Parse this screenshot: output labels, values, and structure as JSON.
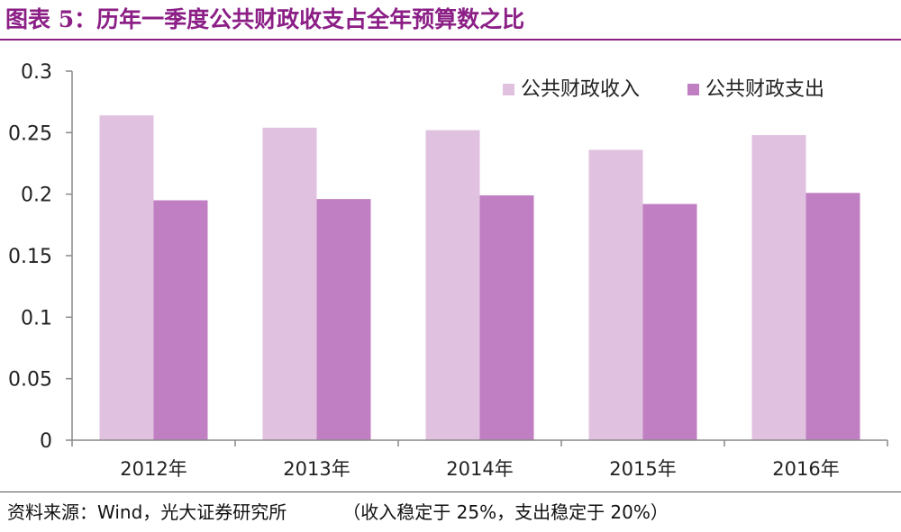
{
  "figure": {
    "label": "图表 5：",
    "title": "历年一季度公共财政收支占全年预算数之比"
  },
  "source": {
    "text": "资料来源：Wind，光大证券研究所",
    "note": "（收入稳定于 25%，支出稳定于 20%）"
  },
  "colors": {
    "accent": "#8b1f86",
    "income": "#e0c1e0",
    "expense": "#c07fc2"
  },
  "chart_data": {
    "type": "bar",
    "categories": [
      "2012年",
      "2013年",
      "2014年",
      "2015年",
      "2016年"
    ],
    "series": [
      {
        "name": "公共财政收入",
        "values": [
          0.264,
          0.254,
          0.252,
          0.236,
          0.248
        ]
      },
      {
        "name": "公共财政支出",
        "values": [
          0.195,
          0.196,
          0.199,
          0.192,
          0.201
        ]
      }
    ],
    "ylim": [
      0,
      0.3
    ],
    "yticks": [
      "0",
      "0.05",
      "0.1",
      "0.15",
      "0.2",
      "0.25",
      "0.3"
    ],
    "xlabel": "",
    "ylabel": "",
    "grid": false,
    "legend": "top-right"
  }
}
